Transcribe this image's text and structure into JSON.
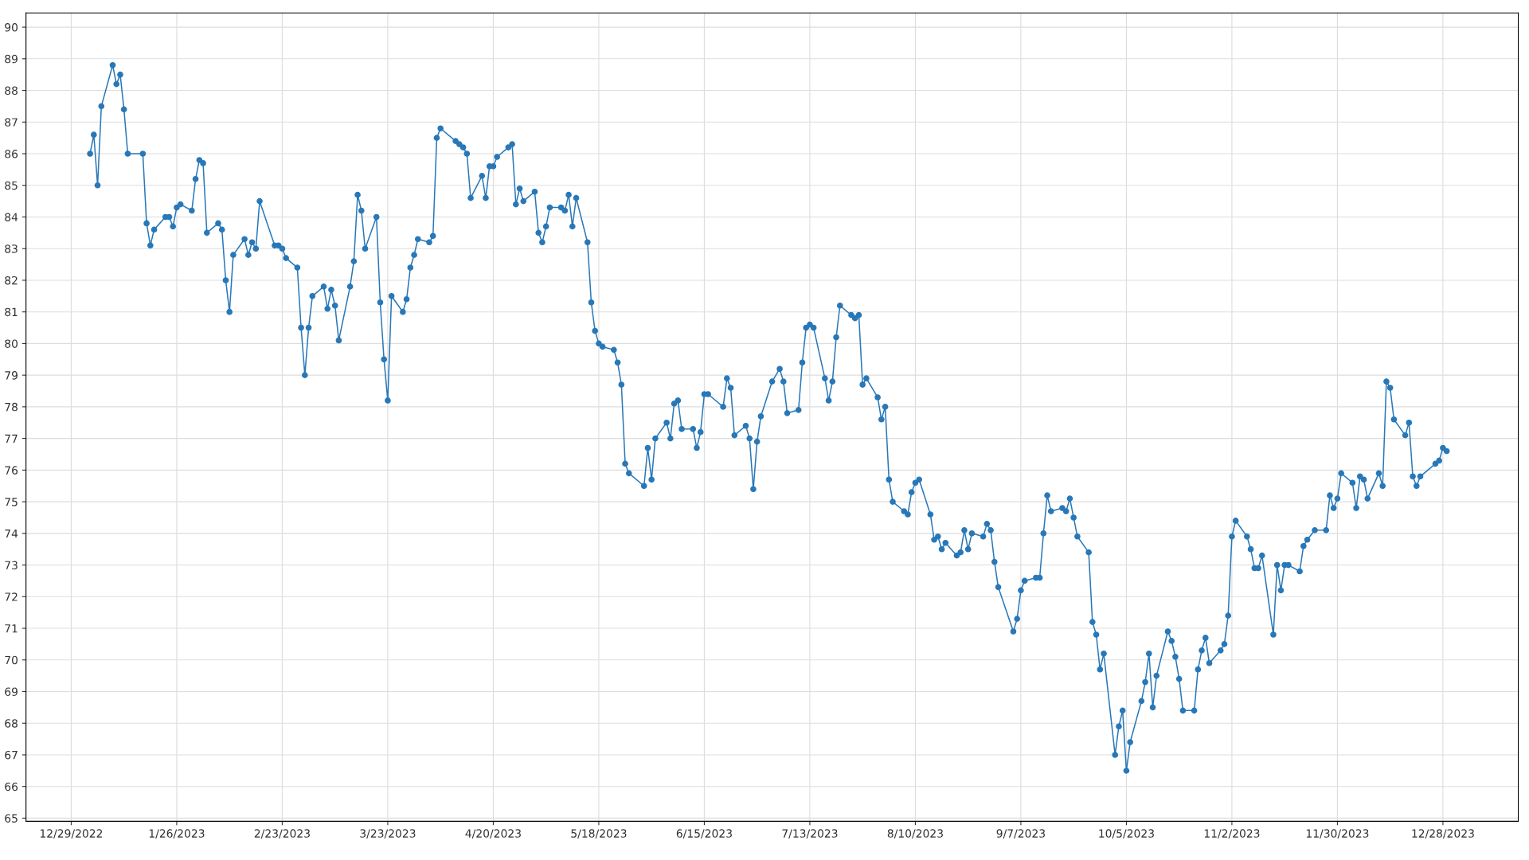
{
  "chart_data": {
    "type": "line",
    "grid": true,
    "marker": "circle",
    "line_style": "solid",
    "xlim": [
      "2022-12-17",
      "2024-01-17"
    ],
    "xticks": [
      {
        "value": "2022-12-29",
        "label": "12/29/2022"
      },
      {
        "value": "2023-01-26",
        "label": "1/26/2023"
      },
      {
        "value": "2023-02-23",
        "label": "2/23/2023"
      },
      {
        "value": "2023-03-23",
        "label": "3/23/2023"
      },
      {
        "value": "2023-04-20",
        "label": "4/20/2023"
      },
      {
        "value": "2023-05-18",
        "label": "5/18/2023"
      },
      {
        "value": "2023-06-15",
        "label": "6/15/2023"
      },
      {
        "value": "2023-07-13",
        "label": "7/13/2023"
      },
      {
        "value": "2023-08-10",
        "label": "8/10/2023"
      },
      {
        "value": "2023-09-07",
        "label": "9/7/2023"
      },
      {
        "value": "2023-10-05",
        "label": "10/5/2023"
      },
      {
        "value": "2023-11-02",
        "label": "11/2/2023"
      },
      {
        "value": "2023-11-30",
        "label": "11/30/2023"
      },
      {
        "value": "2023-12-28",
        "label": "12/28/2023"
      }
    ],
    "ylim": [
      64.9,
      90.45
    ],
    "yticks": [
      65,
      66,
      67,
      68,
      69,
      70,
      71,
      72,
      73,
      74,
      75,
      76,
      77,
      78,
      79,
      80,
      81,
      82,
      83,
      84,
      85,
      86,
      87,
      88,
      89,
      90
    ],
    "series": [
      {
        "color": "#2878b8",
        "x": [
          "2023-01-03",
          "2023-01-04",
          "2023-01-05",
          "2023-01-06",
          "2023-01-09",
          "2023-01-10",
          "2023-01-11",
          "2023-01-12",
          "2023-01-13",
          "2023-01-17",
          "2023-01-18",
          "2023-01-19",
          "2023-01-20",
          "2023-01-23",
          "2023-01-24",
          "2023-01-25",
          "2023-01-26",
          "2023-01-27",
          "2023-01-30",
          "2023-01-31",
          "2023-02-01",
          "2023-02-02",
          "2023-02-03",
          "2023-02-06",
          "2023-02-07",
          "2023-02-08",
          "2023-02-09",
          "2023-02-10",
          "2023-02-13",
          "2023-02-14",
          "2023-02-15",
          "2023-02-16",
          "2023-02-17",
          "2023-02-21",
          "2023-02-22",
          "2023-02-23",
          "2023-02-24",
          "2023-02-27",
          "2023-02-28",
          "2023-03-01",
          "2023-03-02",
          "2023-03-03",
          "2023-03-06",
          "2023-03-07",
          "2023-03-08",
          "2023-03-09",
          "2023-03-10",
          "2023-03-13",
          "2023-03-14",
          "2023-03-15",
          "2023-03-16",
          "2023-03-17",
          "2023-03-20",
          "2023-03-21",
          "2023-03-22",
          "2023-03-23",
          "2023-03-24",
          "2023-03-27",
          "2023-03-28",
          "2023-03-29",
          "2023-03-30",
          "2023-03-31",
          "2023-04-03",
          "2023-04-04",
          "2023-04-05",
          "2023-04-06",
          "2023-04-10",
          "2023-04-11",
          "2023-04-12",
          "2023-04-13",
          "2023-04-14",
          "2023-04-17",
          "2023-04-18",
          "2023-04-19",
          "2023-04-20",
          "2023-04-21",
          "2023-04-24",
          "2023-04-25",
          "2023-04-26",
          "2023-04-27",
          "2023-04-28",
          "2023-05-01",
          "2023-05-02",
          "2023-05-03",
          "2023-05-04",
          "2023-05-05",
          "2023-05-08",
          "2023-05-09",
          "2023-05-10",
          "2023-05-11",
          "2023-05-12",
          "2023-05-15",
          "2023-05-16",
          "2023-05-17",
          "2023-05-18",
          "2023-05-19",
          "2023-05-22",
          "2023-05-23",
          "2023-05-24",
          "2023-05-25",
          "2023-05-26",
          "2023-05-30",
          "2023-05-31",
          "2023-06-01",
          "2023-06-02",
          "2023-06-05",
          "2023-06-06",
          "2023-06-07",
          "2023-06-08",
          "2023-06-09",
          "2023-06-12",
          "2023-06-13",
          "2023-06-14",
          "2023-06-15",
          "2023-06-16",
          "2023-06-20",
          "2023-06-21",
          "2023-06-22",
          "2023-06-23",
          "2023-06-26",
          "2023-06-27",
          "2023-06-28",
          "2023-06-29",
          "2023-06-30",
          "2023-07-03",
          "2023-07-05",
          "2023-07-06",
          "2023-07-07",
          "2023-07-10",
          "2023-07-11",
          "2023-07-12",
          "2023-07-13",
          "2023-07-14",
          "2023-07-17",
          "2023-07-18",
          "2023-07-19",
          "2023-07-20",
          "2023-07-21",
          "2023-07-24",
          "2023-07-25",
          "2023-07-26",
          "2023-07-27",
          "2023-07-28",
          "2023-07-31",
          "2023-08-01",
          "2023-08-02",
          "2023-08-03",
          "2023-08-04",
          "2023-08-07",
          "2023-08-08",
          "2023-08-09",
          "2023-08-10",
          "2023-08-11",
          "2023-08-14",
          "2023-08-15",
          "2023-08-16",
          "2023-08-17",
          "2023-08-18",
          "2023-08-21",
          "2023-08-22",
          "2023-08-23",
          "2023-08-24",
          "2023-08-25",
          "2023-08-28",
          "2023-08-29",
          "2023-08-30",
          "2023-08-31",
          "2023-09-01",
          "2023-09-05",
          "2023-09-06",
          "2023-09-07",
          "2023-09-08",
          "2023-09-11",
          "2023-09-12",
          "2023-09-13",
          "2023-09-14",
          "2023-09-15",
          "2023-09-18",
          "2023-09-19",
          "2023-09-20",
          "2023-09-21",
          "2023-09-22",
          "2023-09-25",
          "2023-09-26",
          "2023-09-27",
          "2023-09-28",
          "2023-09-29",
          "2023-10-02",
          "2023-10-03",
          "2023-10-04",
          "2023-10-05",
          "2023-10-06",
          "2023-10-09",
          "2023-10-10",
          "2023-10-11",
          "2023-10-12",
          "2023-10-13",
          "2023-10-16",
          "2023-10-17",
          "2023-10-18",
          "2023-10-19",
          "2023-10-20",
          "2023-10-23",
          "2023-10-24",
          "2023-10-25",
          "2023-10-26",
          "2023-10-27",
          "2023-10-30",
          "2023-10-31",
          "2023-11-01",
          "2023-11-02",
          "2023-11-03",
          "2023-11-06",
          "2023-11-07",
          "2023-11-08",
          "2023-11-09",
          "2023-11-10",
          "2023-11-13",
          "2023-11-14",
          "2023-11-15",
          "2023-11-16",
          "2023-11-17",
          "2023-11-20",
          "2023-11-21",
          "2023-11-22",
          "2023-11-24",
          "2023-11-27",
          "2023-11-28",
          "2023-11-29",
          "2023-11-30",
          "2023-12-01",
          "2023-12-04",
          "2023-12-05",
          "2023-12-06",
          "2023-12-07",
          "2023-12-08",
          "2023-12-11",
          "2023-12-12",
          "2023-12-13",
          "2023-12-14",
          "2023-12-15",
          "2023-12-18",
          "2023-12-19",
          "2023-12-20",
          "2023-12-21",
          "2023-12-22",
          "2023-12-26",
          "2023-12-27",
          "2023-12-28",
          "2023-12-29"
        ],
        "values": [
          86.0,
          86.6,
          85.0,
          87.5,
          88.8,
          88.2,
          88.5,
          87.4,
          86.0,
          86.0,
          83.8,
          83.1,
          83.6,
          84.0,
          84.0,
          83.7,
          84.3,
          84.4,
          84.2,
          85.2,
          85.8,
          85.7,
          83.5,
          83.8,
          83.6,
          82.0,
          81.0,
          82.8,
          83.3,
          82.8,
          83.2,
          83.0,
          84.5,
          83.1,
          83.1,
          83.0,
          82.7,
          82.4,
          80.5,
          79.0,
          80.5,
          81.5,
          81.8,
          81.1,
          81.7,
          81.2,
          80.1,
          81.8,
          82.6,
          84.7,
          84.2,
          83.0,
          84.0,
          81.3,
          79.5,
          78.2,
          81.5,
          81.0,
          81.4,
          82.4,
          82.8,
          83.3,
          83.2,
          83.4,
          86.5,
          86.8,
          86.4,
          86.3,
          86.2,
          86.0,
          84.6,
          85.3,
          84.6,
          85.6,
          85.6,
          85.9,
          86.2,
          86.3,
          84.4,
          84.9,
          84.5,
          84.8,
          83.5,
          83.2,
          83.7,
          84.3,
          84.3,
          84.2,
          84.7,
          83.7,
          84.6,
          83.2,
          81.3,
          80.4,
          80.0,
          79.9,
          79.8,
          79.4,
          78.7,
          76.2,
          75.9,
          75.5,
          76.7,
          75.7,
          77.0,
          77.5,
          77.0,
          78.1,
          78.2,
          77.3,
          77.3,
          76.7,
          77.2,
          78.4,
          78.4,
          78.0,
          78.9,
          78.6,
          77.1,
          77.4,
          77.0,
          75.4,
          76.9,
          77.7,
          78.8,
          79.2,
          78.8,
          77.8,
          77.9,
          79.4,
          80.5,
          80.6,
          80.5,
          78.9,
          78.2,
          78.8,
          80.2,
          81.2,
          80.9,
          80.8,
          80.9,
          78.7,
          78.9,
          78.3,
          77.6,
          78.0,
          75.7,
          75.0,
          74.7,
          74.6,
          75.3,
          75.6,
          75.7,
          74.6,
          73.8,
          73.9,
          73.5,
          73.7,
          73.3,
          73.4,
          74.1,
          73.5,
          74.0,
          73.9,
          74.3,
          74.1,
          73.1,
          72.3,
          70.9,
          71.3,
          72.2,
          72.5,
          72.6,
          72.6,
          74.0,
          75.2,
          74.7,
          74.8,
          74.7,
          75.1,
          74.5,
          73.9,
          73.4,
          71.2,
          70.8,
          69.7,
          70.2,
          67.0,
          67.9,
          68.4,
          66.5,
          67.4,
          68.7,
          69.3,
          70.2,
          68.5,
          69.5,
          70.9,
          70.6,
          70.1,
          69.4,
          68.4,
          68.4,
          69.7,
          70.3,
          70.7,
          69.9,
          70.3,
          70.5,
          71.4,
          73.9,
          74.4,
          73.9,
          73.5,
          72.9,
          72.9,
          73.3,
          70.8,
          73.0,
          72.2,
          73.0,
          73.0,
          72.8,
          73.6,
          73.8,
          74.1,
          74.1,
          75.2,
          74.8,
          75.1,
          75.9,
          75.6,
          74.8,
          75.8,
          75.7,
          75.1,
          75.9,
          75.5,
          78.8,
          78.6,
          77.6,
          77.1,
          77.5,
          75.8,
          75.5,
          75.8,
          76.2,
          76.3,
          76.7,
          76.6
        ]
      }
    ]
  }
}
